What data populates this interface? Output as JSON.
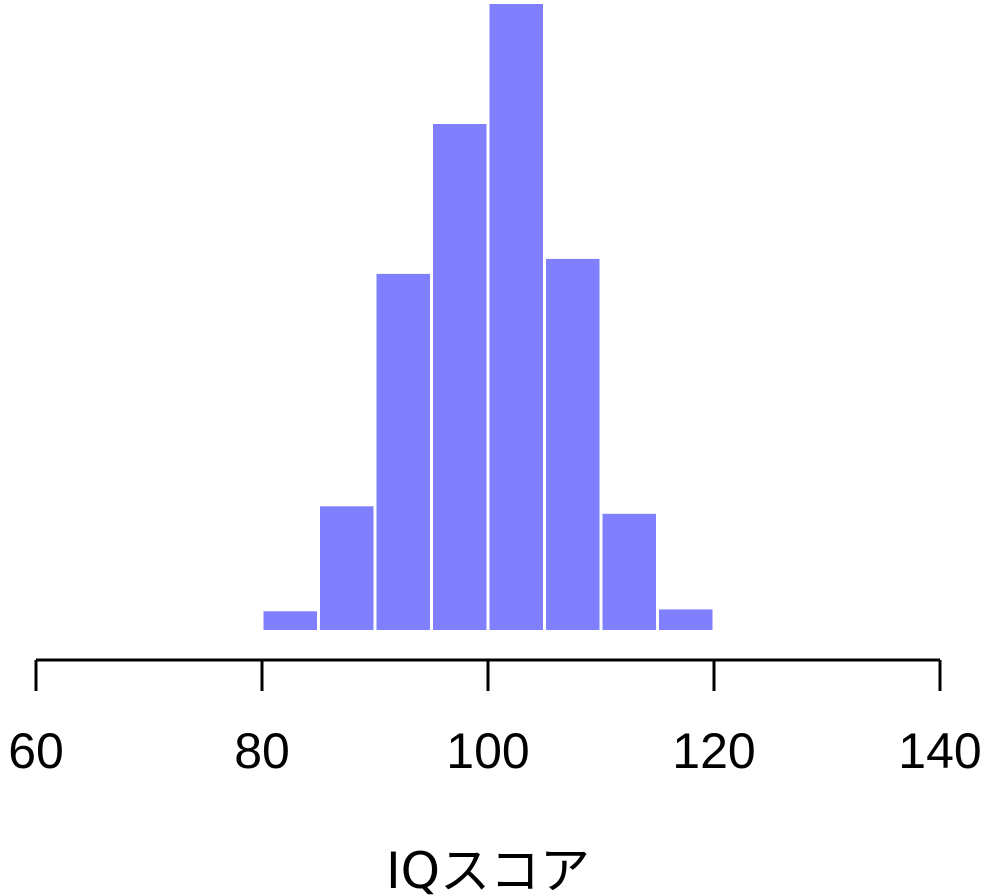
{
  "chart_data": {
    "type": "bar",
    "subtype": "histogram",
    "title": "",
    "xlabel": "IQスコア",
    "ylabel": "",
    "bins": [
      {
        "start": 80,
        "end": 85,
        "count": 1.0
      },
      {
        "start": 85,
        "end": 90,
        "count": 6.6
      },
      {
        "start": 90,
        "end": 95,
        "count": 19.0
      },
      {
        "start": 95,
        "end": 100,
        "count": 27.0
      },
      {
        "start": 100,
        "end": 105,
        "count": 33.4
      },
      {
        "start": 105,
        "end": 110,
        "count": 19.8
      },
      {
        "start": 110,
        "end": 115,
        "count": 6.2
      },
      {
        "start": 115,
        "end": 120,
        "count": 1.1
      }
    ],
    "xlim": [
      60,
      140
    ],
    "ylim": [
      0,
      33.4
    ],
    "x_ticks": [
      60,
      80,
      100,
      120,
      140
    ],
    "x_tick_labels": [
      "60",
      "80",
      "100",
      "120",
      "140"
    ],
    "bar_color": "#8080ff",
    "grid": false,
    "legend": "none"
  }
}
